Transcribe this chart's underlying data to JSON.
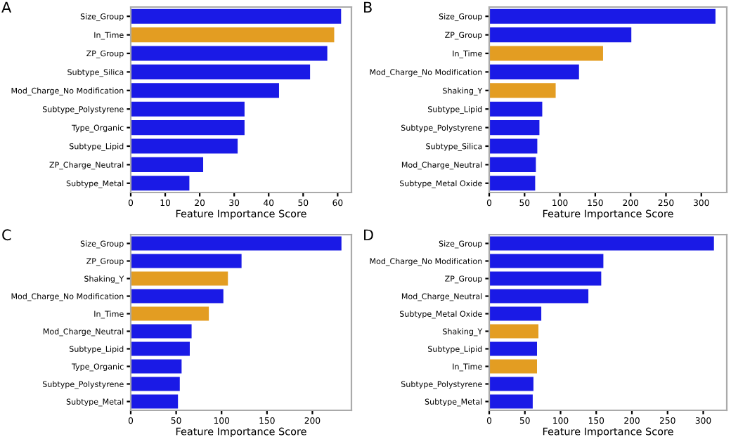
{
  "chart_data": [
    {
      "type": "bar",
      "orientation": "horizontal",
      "title": "A",
      "xlabel": "Feature Importance Score",
      "categories": [
        "Size_Group",
        "In_Time",
        "ZP_Group",
        "Subtype_Silica",
        "Mod_Charge_No Modification",
        "Subtype_Polystyrene",
        "Type_Organic",
        "Subtype_Lipid",
        "ZP_Charge_Neutral",
        "Subtype_Metal"
      ],
      "values": [
        61,
        59,
        57,
        52,
        43,
        33,
        33,
        31,
        21,
        17
      ],
      "colors": [
        "#1a1ae6",
        "#e39d22",
        "#1a1ae6",
        "#1a1ae6",
        "#1a1ae6",
        "#1a1ae6",
        "#1a1ae6",
        "#1a1ae6",
        "#1a1ae6",
        "#1a1ae6"
      ],
      "xlim": [
        0,
        64
      ],
      "xticks": [
        0,
        10,
        20,
        30,
        40,
        50,
        60
      ]
    },
    {
      "type": "bar",
      "orientation": "horizontal",
      "title": "B",
      "xlabel": "Feature Importance Score",
      "categories": [
        "Size_Group",
        "ZP_Group",
        "In_Time",
        "Mod_Charge_No Modification",
        "Shaking_Y",
        "Subtype_Lipid",
        "Subtype_Polystyrene",
        "Subtype_Silica",
        "Mod_Charge_Neutral",
        "Subtype_Metal Oxide"
      ],
      "values": [
        320,
        201,
        161,
        127,
        94,
        75,
        71,
        68,
        66,
        65
      ],
      "colors": [
        "#1a1ae6",
        "#1a1ae6",
        "#e39d22",
        "#1a1ae6",
        "#e39d22",
        "#1a1ae6",
        "#1a1ae6",
        "#1a1ae6",
        "#1a1ae6",
        "#1a1ae6"
      ],
      "xlim": [
        0,
        336
      ],
      "xticks": [
        0,
        50,
        100,
        150,
        200,
        250,
        300
      ]
    },
    {
      "type": "bar",
      "orientation": "horizontal",
      "title": "C",
      "xlabel": "Feature Importance Score",
      "categories": [
        "Size_Group",
        "ZP_Group",
        "Shaking_Y",
        "Mod_Charge_No Modification",
        "In_Time",
        "Mod_Charge_Neutral",
        "Subtype_Lipid",
        "Type_Organic",
        "Subtype_Polystyrene",
        "Subtype_Metal"
      ],
      "values": [
        232,
        122,
        107,
        102,
        86,
        67,
        65,
        56,
        54,
        52
      ],
      "colors": [
        "#1a1ae6",
        "#1a1ae6",
        "#e39d22",
        "#1a1ae6",
        "#e39d22",
        "#1a1ae6",
        "#1a1ae6",
        "#1a1ae6",
        "#1a1ae6",
        "#1a1ae6"
      ],
      "xlim": [
        0,
        243
      ],
      "xticks": [
        0,
        50,
        100,
        150,
        200
      ]
    },
    {
      "type": "bar",
      "orientation": "horizontal",
      "title": "D",
      "xlabel": "Feature Importance Score",
      "categories": [
        "Size_Group",
        "Mod_Charge_No Modification",
        "ZP_Group",
        "Mod_Charge_Neutral",
        "Subtype_Metal Oxide",
        "Shaking_Y",
        "Subtype_Lipid",
        "In_Time",
        "Subtype_Polystyrene",
        "Subtype_Metal"
      ],
      "values": [
        315,
        160,
        157,
        139,
        73,
        69,
        67,
        67,
        62,
        61
      ],
      "colors": [
        "#1a1ae6",
        "#1a1ae6",
        "#1a1ae6",
        "#1a1ae6",
        "#1a1ae6",
        "#e39d22",
        "#1a1ae6",
        "#e39d22",
        "#1a1ae6",
        "#1a1ae6"
      ],
      "xlim": [
        0,
        333
      ],
      "xticks": [
        0,
        50,
        100,
        150,
        200,
        250,
        300
      ]
    }
  ]
}
